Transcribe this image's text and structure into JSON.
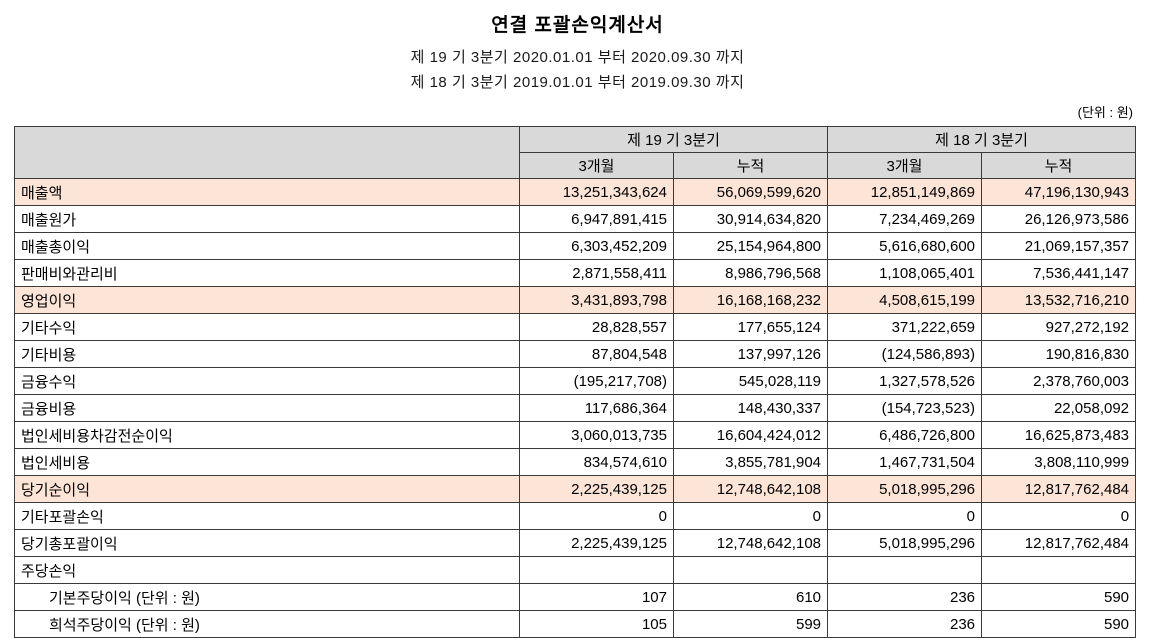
{
  "header": {
    "title": "연결 포괄손익계산서",
    "subtitle1": "제 19 기 3분기 2020.01.01 부터 2020.09.30 까지",
    "subtitle2": "제 18 기 3분기 2019.01.01 부터 2019.09.30 까지",
    "unit_label": "(단위 : 원)"
  },
  "table": {
    "col_groups": [
      "제 19 기 3분기",
      "제 18 기 3분기"
    ],
    "sub_headers": [
      "3개월",
      "누적",
      "3개월",
      "누적"
    ],
    "rows": [
      {
        "label": "매출액",
        "highlight": true,
        "indent": false,
        "values": [
          "13,251,343,624",
          "56,069,599,620",
          "12,851,149,869",
          "47,196,130,943"
        ]
      },
      {
        "label": "매출원가",
        "highlight": false,
        "indent": false,
        "values": [
          "6,947,891,415",
          "30,914,634,820",
          "7,234,469,269",
          "26,126,973,586"
        ]
      },
      {
        "label": "매출총이익",
        "highlight": false,
        "indent": false,
        "values": [
          "6,303,452,209",
          "25,154,964,800",
          "5,616,680,600",
          "21,069,157,357"
        ]
      },
      {
        "label": "판매비와관리비",
        "highlight": false,
        "indent": false,
        "values": [
          "2,871,558,411",
          "8,986,796,568",
          "1,108,065,401",
          "7,536,441,147"
        ]
      },
      {
        "label": "영업이익",
        "highlight": true,
        "indent": false,
        "values": [
          "3,431,893,798",
          "16,168,168,232",
          "4,508,615,199",
          "13,532,716,210"
        ]
      },
      {
        "label": "기타수익",
        "highlight": false,
        "indent": false,
        "values": [
          "28,828,557",
          "177,655,124",
          "371,222,659",
          "927,272,192"
        ]
      },
      {
        "label": "기타비용",
        "highlight": false,
        "indent": false,
        "values": [
          "87,804,548",
          "137,997,126",
          "(124,586,893)",
          "190,816,830"
        ]
      },
      {
        "label": "금융수익",
        "highlight": false,
        "indent": false,
        "values": [
          "(195,217,708)",
          "545,028,119",
          "1,327,578,526",
          "2,378,760,003"
        ]
      },
      {
        "label": "금융비용",
        "highlight": false,
        "indent": false,
        "values": [
          "117,686,364",
          "148,430,337",
          "(154,723,523)",
          "22,058,092"
        ]
      },
      {
        "label": "법인세비용차감전순이익",
        "highlight": false,
        "indent": false,
        "values": [
          "3,060,013,735",
          "16,604,424,012",
          "6,486,726,800",
          "16,625,873,483"
        ]
      },
      {
        "label": "법인세비용",
        "highlight": false,
        "indent": false,
        "values": [
          "834,574,610",
          "3,855,781,904",
          "1,467,731,504",
          "3,808,110,999"
        ]
      },
      {
        "label": "당기순이익",
        "highlight": true,
        "indent": false,
        "values": [
          "2,225,439,125",
          "12,748,642,108",
          "5,018,995,296",
          "12,817,762,484"
        ]
      },
      {
        "label": "기타포괄손익",
        "highlight": false,
        "indent": false,
        "values": [
          "0",
          "0",
          "0",
          "0"
        ]
      },
      {
        "label": "당기총포괄이익",
        "highlight": false,
        "indent": false,
        "values": [
          "2,225,439,125",
          "12,748,642,108",
          "5,018,995,296",
          "12,817,762,484"
        ]
      },
      {
        "label": "주당손익",
        "highlight": false,
        "indent": false,
        "values": [
          "",
          "",
          "",
          ""
        ]
      },
      {
        "label": "기본주당이익 (단위 : 원)",
        "highlight": false,
        "indent": true,
        "values": [
          "107",
          "610",
          "236",
          "590"
        ]
      },
      {
        "label": "희석주당이익 (단위 : 원)",
        "highlight": false,
        "indent": true,
        "values": [
          "105",
          "599",
          "236",
          "590"
        ]
      }
    ]
  }
}
